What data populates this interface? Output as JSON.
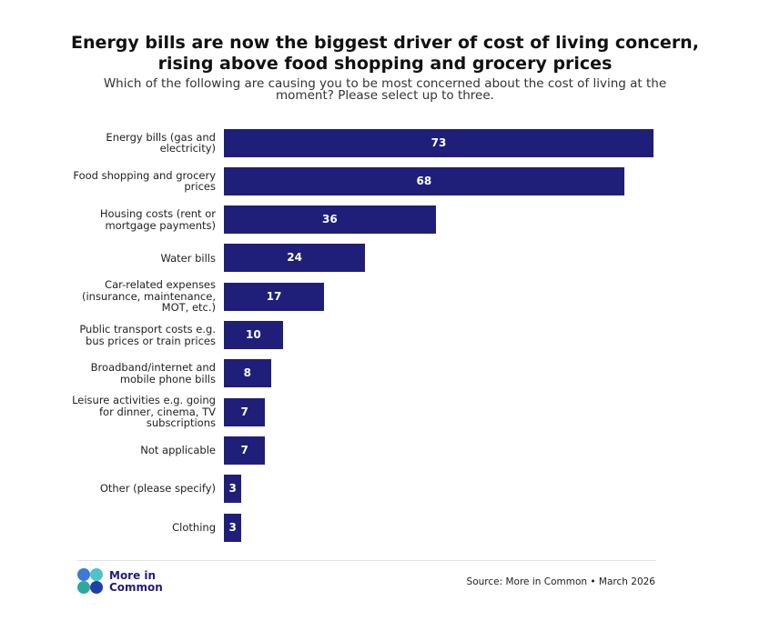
{
  "chart_data": {
    "type": "bar",
    "orientation": "horizontal",
    "title": "Energy bills are now the biggest driver of cost of living concern, rising above food shopping and grocery prices",
    "subtitle": "Which of the following are causing you to be most concerned about the cost of living at the moment? Please select up to three.",
    "categories": [
      "Energy bills (gas and electricity)",
      "Food shopping and grocery prices",
      "Housing costs (rent or mortgage payments)",
      "Water bills",
      "Car-related expenses (insurance, maintenance, MOT, etc.)",
      "Public transport costs e.g. bus prices or train prices",
      "Broadband/internet and mobile phone bills",
      "Leisure activities e.g. going for dinner, cinema, TV subscriptions",
      "Not applicable",
      "Other (please specify)",
      "Clothing"
    ],
    "values": [
      73,
      68,
      36,
      24,
      17,
      10,
      8,
      7,
      7,
      3,
      3
    ],
    "color": "#1f1f7a",
    "brand": "More in Common",
    "source": "Source: More in Common • March 2026"
  }
}
